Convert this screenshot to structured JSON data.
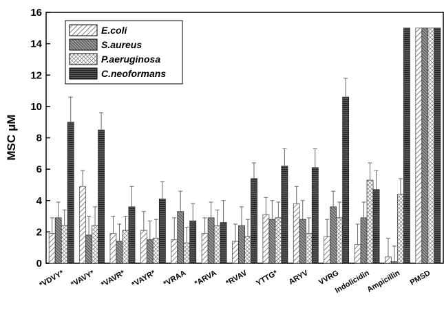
{
  "chart_data": {
    "type": "bar",
    "y_label": "MSC μM",
    "categories": [
      "*VDVY*",
      "*VAVY*",
      "*VAVR*",
      "*VAYR*",
      "*VRAA",
      "*ARVA",
      "*RVAV",
      "YTTG*",
      "ARYV",
      "VVRG",
      "Indolicidin",
      "Ampicillin",
      "PMSD"
    ],
    "series": [
      {
        "name": "E.coli",
        "pattern": "diagonal",
        "color": "#555555",
        "values": [
          1.9,
          4.9,
          1.9,
          2.1,
          1.5,
          1.9,
          1.4,
          3.1,
          3.8,
          1.7,
          1.2,
          0.4,
          15
        ],
        "errors": [
          1.0,
          1.0,
          1.1,
          1.2,
          1.4,
          1.0,
          1.1,
          1.1,
          1.1,
          1.1,
          1.3,
          1.2,
          null
        ]
      },
      {
        "name": "S.aureus",
        "pattern": "dense-diagonal",
        "color": "#333333",
        "values": [
          2.9,
          1.8,
          1.4,
          1.5,
          3.3,
          2.9,
          2.4,
          2.8,
          2.8,
          3.6,
          2.9,
          0.1,
          15
        ],
        "errors": [
          1.0,
          1.2,
          1.1,
          1.2,
          1.3,
          1.0,
          1.2,
          1.2,
          1.2,
          1.0,
          1.0,
          1.0,
          null
        ]
      },
      {
        "name": "P.aeruginosa",
        "pattern": "crosshatch",
        "color": "#444444",
        "values": [
          2.4,
          2.4,
          2.1,
          1.6,
          1.3,
          2.4,
          1.7,
          2.9,
          1.9,
          2.9,
          5.3,
          4.4,
          15
        ],
        "errors": [
          1.0,
          1.2,
          0.9,
          1.2,
          1.0,
          1.0,
          1.1,
          1.0,
          1.0,
          1.0,
          1.1,
          1.0,
          null
        ]
      },
      {
        "name": "C.neoformans",
        "pattern": "horizontal",
        "color": "#222222",
        "values": [
          9.0,
          8.5,
          3.6,
          4.1,
          2.7,
          2.6,
          5.4,
          6.2,
          6.1,
          10.6,
          4.7,
          15,
          15
        ],
        "errors": [
          1.6,
          1.1,
          1.3,
          1.1,
          1.1,
          1.4,
          1.0,
          1.1,
          1.2,
          1.2,
          1.2,
          null,
          null
        ]
      }
    ],
    "ylim": [
      0,
      16
    ],
    "yticks": [
      0,
      2,
      4,
      6,
      8,
      10,
      12,
      14,
      16
    ],
    "legend": "upper left"
  }
}
